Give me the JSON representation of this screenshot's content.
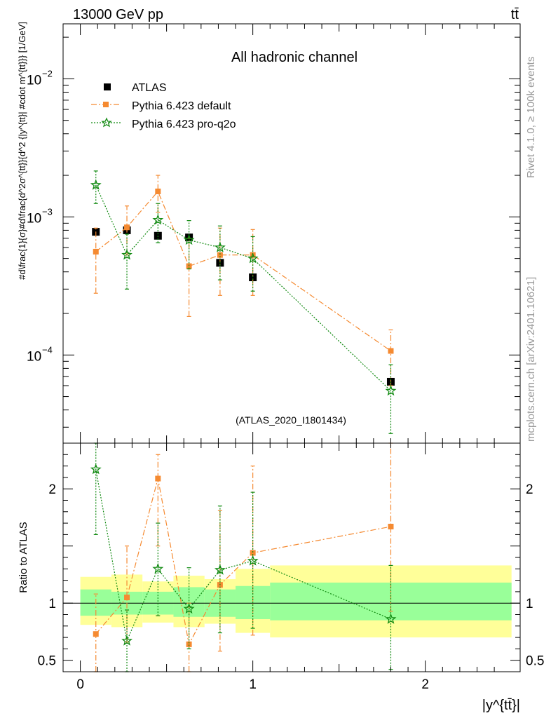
{
  "header": {
    "energy": "13000 GeV pp",
    "process": "tt̄"
  },
  "side_labels": {
    "rivet": "Rivet 4.1.0, ≥ 100k events",
    "source": "mcplots.cern.ch [arXiv:2401.10621]"
  },
  "chart_data": [
    {
      "type": "scatter",
      "title": "All hadronic channel",
      "analysis": "(ATLAS_2020_I1801434)",
      "ylabel": "#d\\frac{1}{σ}#d\\frac{d^2σ^{tt}}{d^2 {|y^{tt}| #cdot m^{tt}}} [1/GeV]",
      "xlabel": "|y^{tt̄}|",
      "yscale": "log",
      "xlim": [
        -0.1,
        2.55
      ],
      "ylim": [
        2.3e-05,
        0.025
      ],
      "yticks": [
        {
          "value": 0.01,
          "label": "10",
          "exp": "−2"
        },
        {
          "value": 0.001,
          "label": "10",
          "exp": "−3"
        },
        {
          "value": 0.0001,
          "label": "10",
          "exp": "−4"
        }
      ],
      "legend": {
        "placement": "top-left",
        "entries": [
          {
            "name": "ATLAS",
            "marker": "square",
            "color": "#000000"
          },
          {
            "name": "Pythia 6.423 default",
            "marker": "square",
            "color": "#f58a31"
          },
          {
            "name": "Pythia 6.423 pro-q2o",
            "marker": "star",
            "color": "#118a11"
          }
        ]
      },
      "bins": [
        [
          0.0,
          0.18
        ],
        [
          0.18,
          0.36
        ],
        [
          0.36,
          0.54
        ],
        [
          0.54,
          0.72
        ],
        [
          0.72,
          0.9
        ],
        [
          0.9,
          1.1
        ],
        [
          1.1,
          2.5
        ]
      ],
      "series": [
        {
          "name": "ATLAS",
          "color": "#000000",
          "marker": "square",
          "x": [
            0.09,
            0.27,
            0.45,
            0.63,
            0.81,
            1.0,
            1.8
          ],
          "y": [
            0.00078,
            0.0008,
            0.00073,
            0.00071,
            0.000465,
            0.000365,
            6.4e-05
          ],
          "err": [
            3e-05,
            3e-05,
            3e-05,
            3e-05,
            2e-05,
            2e-05,
            3e-06
          ]
        },
        {
          "name": "Pythia 6.423 default",
          "color": "#f58a31",
          "marker": "square",
          "x": [
            0.09,
            0.27,
            0.45,
            0.63,
            0.81,
            1.0,
            1.8
          ],
          "y": [
            0.00056,
            0.00084,
            0.00153,
            0.00044,
            0.00053,
            0.00053,
            0.000107
          ],
          "lo": [
            0.00028,
            0.00053,
            0.00108,
            0.00019,
            0.00027,
            0.00027,
            6e-05
          ],
          "hi": [
            0.00083,
            0.0012,
            0.002,
            0.0007,
            0.00083,
            0.00081,
            0.000152
          ]
        },
        {
          "name": "Pythia 6.423 pro-q2o",
          "color": "#118a11",
          "marker": "star",
          "x": [
            0.09,
            0.27,
            0.45,
            0.63,
            0.81,
            1.0,
            1.8
          ],
          "y": [
            0.0017,
            0.00053,
            0.00095,
            0.00068,
            0.0006,
            0.0005,
            5.5e-05
          ],
          "lo": [
            0.00125,
            0.0003,
            0.00065,
            0.00042,
            0.00035,
            0.00029,
            2.7e-05
          ],
          "hi": [
            0.00215,
            0.00075,
            0.00125,
            0.00094,
            0.00086,
            0.00072,
            8.5e-05
          ]
        }
      ]
    },
    {
      "type": "scatter",
      "ylabel": "Ratio to ATLAS",
      "xlabel": "|y^{tt̄}|",
      "ylim": [
        0.4,
        2.4
      ],
      "yticks": [
        {
          "value": 2,
          "label": "2"
        },
        {
          "value": 1,
          "label": "1"
        },
        {
          "value": 0.5,
          "label": "0.5"
        }
      ],
      "xticks": [
        {
          "value": 0,
          "label": "0"
        },
        {
          "value": 1,
          "label": "1"
        },
        {
          "value": 2,
          "label": "2"
        }
      ],
      "reference_line": 1,
      "bands": [
        {
          "name": "stat",
          "color": "#99ff99",
          "bins": [
            [
              0.0,
              0.18
            ],
            [
              0.18,
              0.36
            ],
            [
              0.36,
              0.54
            ],
            [
              0.54,
              0.72
            ],
            [
              0.72,
              0.9
            ],
            [
              0.9,
              1.1
            ],
            [
              1.1,
              2.5
            ]
          ],
          "lo": [
            0.89,
            0.9,
            0.9,
            0.88,
            0.88,
            0.86,
            0.85
          ],
          "hi": [
            1.12,
            1.1,
            1.1,
            1.14,
            1.12,
            1.15,
            1.18
          ]
        },
        {
          "name": "total",
          "color": "#ffff99",
          "bins": [
            [
              0.0,
              0.18
            ],
            [
              0.18,
              0.36
            ],
            [
              0.36,
              0.54
            ],
            [
              0.54,
              0.72
            ],
            [
              0.72,
              0.9
            ],
            [
              0.9,
              1.1
            ],
            [
              1.1,
              2.5
            ]
          ],
          "lo": [
            0.81,
            0.79,
            0.83,
            0.79,
            0.82,
            0.74,
            0.7
          ],
          "hi": [
            1.23,
            1.25,
            1.19,
            1.24,
            1.21,
            1.3,
            1.33
          ]
        }
      ],
      "series": [
        {
          "name": "Pythia 6.423 default",
          "color": "#f58a31",
          "marker": "square",
          "x": [
            0.09,
            0.27,
            0.45,
            0.63,
            0.81,
            1.0,
            1.8
          ],
          "y": [
            0.73,
            1.05,
            2.09,
            0.64,
            1.16,
            1.44,
            1.67
          ],
          "lo": [
            0.4,
            0.66,
            1.5,
            0.3,
            0.58,
            0.72,
            0.93
          ],
          "hi": [
            1.08,
            1.5,
            2.3,
            1.0,
            1.81,
            2.2,
            2.4
          ]
        },
        {
          "name": "Pythia 6.423 pro-q2o",
          "color": "#118a11",
          "marker": "star",
          "x": [
            0.09,
            0.27,
            0.45,
            0.63,
            0.81,
            1.0,
            1.8
          ],
          "y": [
            2.17,
            0.67,
            1.3,
            0.95,
            1.29,
            1.37,
            0.86
          ],
          "lo": [
            1.6,
            0.4,
            0.89,
            0.6,
            0.74,
            0.78,
            0.42
          ],
          "hi": [
            2.4,
            0.94,
            1.7,
            1.31,
            1.85,
            1.97,
            1.33
          ]
        }
      ]
    }
  ]
}
